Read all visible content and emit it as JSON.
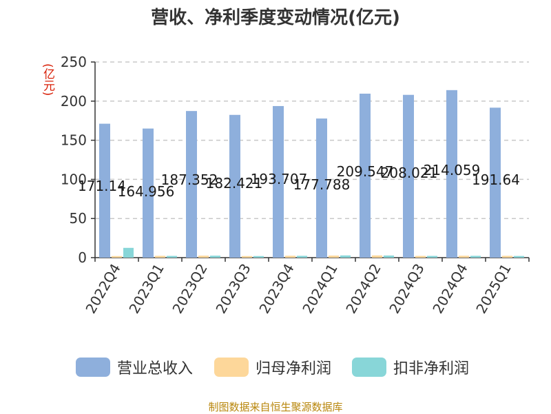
{
  "chart_data": {
    "type": "bar",
    "title": "营收、净利季度变动情况(亿元)",
    "ylabel": "(亿元)",
    "xlabel": "",
    "ylim": [
      0,
      250
    ],
    "yticks": [
      0,
      50,
      100,
      150,
      200,
      250
    ],
    "grid": true,
    "legend_position": "bottom",
    "categories": [
      "2022Q4",
      "2023Q1",
      "2023Q2",
      "2023Q3",
      "2023Q4",
      "2024Q1",
      "2024Q2",
      "2024Q3",
      "2024Q4",
      "2025Q1"
    ],
    "series": [
      {
        "name": "营业总收入",
        "color": "#8eafdc",
        "values": [
          171.14,
          164.956,
          187.352,
          182.421,
          193.707,
          177.788,
          209.547,
          208.021,
          214.059,
          191.64
        ],
        "labels": [
          "171.14",
          "164.956",
          "187.352",
          "182.421",
          "193.707",
          "177.788",
          "209.547",
          "208.021",
          "214.059",
          "191.64"
        ]
      },
      {
        "name": "归母净利润",
        "color": "#fdd79a",
        "values": [
          2.0,
          2.3,
          2.5,
          2.0,
          2.4,
          2.6,
          2.8,
          2.2,
          2.4,
          2.3
        ]
      },
      {
        "name": "扣非净利润",
        "color": "#88d6d8",
        "values": [
          12.5,
          2.2,
          2.5,
          2.0,
          2.3,
          2.8,
          2.7,
          2.2,
          2.3,
          2.1
        ]
      }
    ]
  },
  "footer": {
    "source": "制图数据来自恒生聚源数据库"
  }
}
